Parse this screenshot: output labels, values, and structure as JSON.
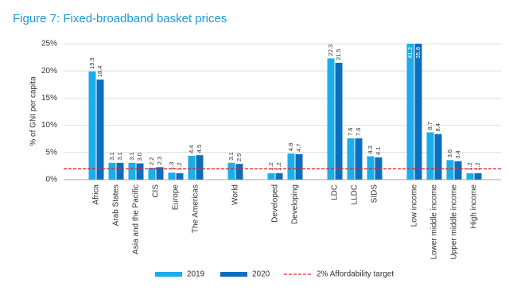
{
  "chart_data": {
    "type": "bar",
    "title": "Figure 7: Fixed-broadband basket prices",
    "y_label": "% of GNI per capita",
    "categories": [
      "Africa",
      "Arab States",
      "Asia and the Pacific",
      "CIS",
      "Europe",
      "The Americas",
      null,
      "World",
      null,
      "Developed",
      "Developing",
      null,
      "LDC",
      "LLDC",
      "SIDS",
      null,
      "Low income",
      "Lower middle income",
      "Upper middle income",
      "High income"
    ],
    "series": [
      {
        "name": "2019",
        "color": "#1aaeea",
        "values": [
          19.9,
          3.1,
          3.1,
          2.2,
          1.3,
          4.4,
          null,
          3.1,
          null,
          1.2,
          4.8,
          null,
          22.3,
          7.6,
          4.3,
          null,
          41.2,
          8.7,
          3.6,
          1.2
        ],
        "value_labels": [
          "19.9",
          "3.1",
          "3.1",
          "2.2",
          "1.3",
          "4.4",
          null,
          "3.1",
          null,
          "1.2",
          "4.8",
          null,
          "22.3",
          "7.6",
          "4.3",
          null,
          "41.2",
          "8.7",
          "3.6",
          "1.2"
        ]
      },
      {
        "name": "2020",
        "color": "#0b6fc0",
        "values": [
          18.4,
          3.1,
          3.0,
          2.3,
          1.2,
          4.5,
          null,
          2.9,
          null,
          1.2,
          4.7,
          null,
          21.5,
          7.6,
          4.1,
          null,
          35.8,
          8.4,
          3.4,
          1.2
        ],
        "value_labels": [
          "18.4",
          "3.1",
          "3.0",
          "2.3",
          "1.2",
          "4.5",
          null,
          "2.9",
          null,
          "1.2",
          "4.7",
          null,
          "21.5",
          "7.6",
          "4.1",
          null,
          "35.8",
          "8.4",
          "3.4",
          "1.2"
        ]
      }
    ],
    "reference": {
      "name": "2% Affordability target",
      "value": 2,
      "color": "#e8202a"
    },
    "ylim": [
      0,
      25
    ],
    "yticks": [
      {
        "value": 0,
        "label": "0%"
      },
      {
        "value": 5,
        "label": "5%"
      },
      {
        "value": 10,
        "label": "10%"
      },
      {
        "value": 15,
        "label": "15%"
      },
      {
        "value": 20,
        "label": "20%"
      },
      {
        "value": 25,
        "label": "25%"
      }
    ],
    "grid": true
  }
}
